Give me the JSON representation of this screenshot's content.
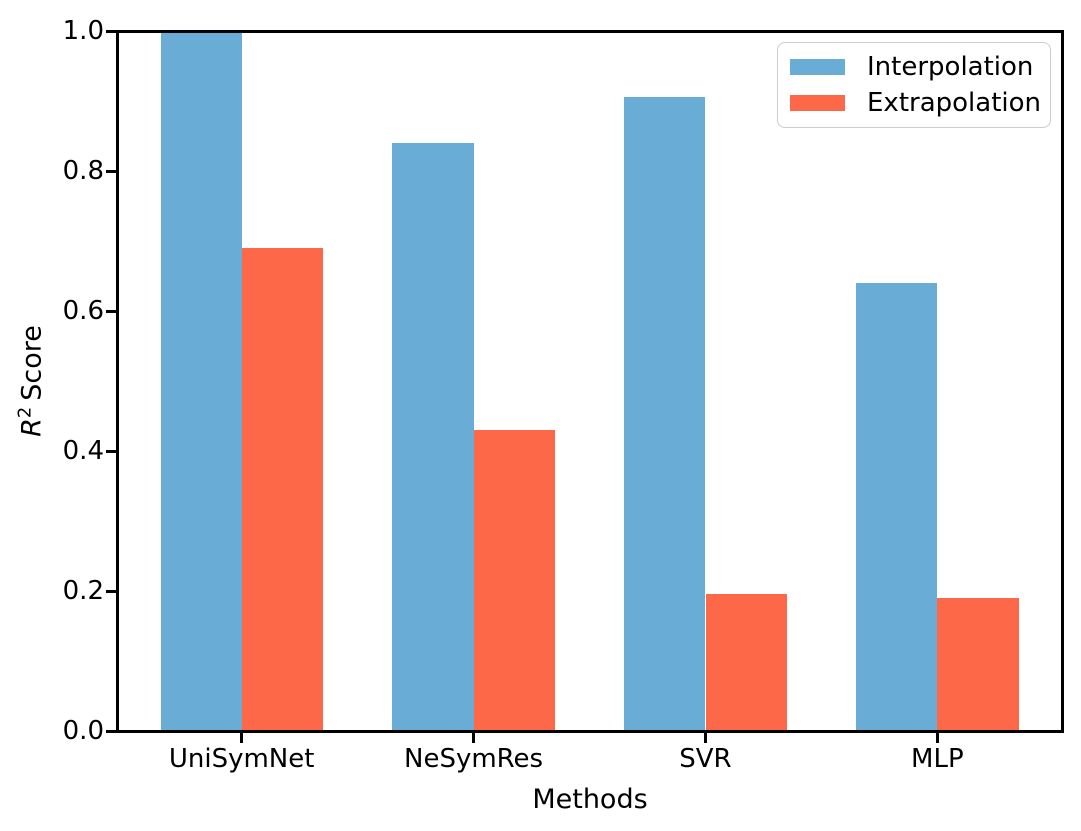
{
  "chart_data": {
    "type": "bar",
    "title": "",
    "categories": [
      "UniSymNet",
      "NeSymRes",
      "SVR",
      "MLP"
    ],
    "series": [
      {
        "name": "Interpolation",
        "color": "#69ACD6",
        "values": [
          1.0,
          0.84,
          0.905,
          0.64
        ]
      },
      {
        "name": "Extrapolation",
        "color": "#FC6848",
        "values": [
          0.69,
          0.43,
          0.195,
          0.19
        ]
      }
    ],
    "xlabel": "Methods",
    "ylabel": {
      "r": "R",
      "sup": "2",
      "rest": "Score",
      "plain_text": "R2 Score"
    },
    "yticks": [
      "0.0",
      "0.2",
      "0.4",
      "0.6",
      "0.8",
      "1.0"
    ],
    "ylim": [
      0.0,
      1.0
    ],
    "bar_width_fraction": 0.35,
    "grid": false,
    "legend_position": "upper right",
    "colors": {
      "axis": "#000000",
      "legend_border": "#cccccc",
      "background": "#ffffff"
    }
  }
}
